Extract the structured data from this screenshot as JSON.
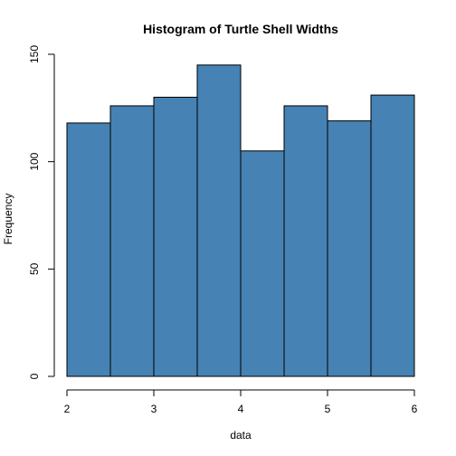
{
  "chart_data": {
    "type": "bar",
    "title": "Histogram of Turtle Shell Widths",
    "xlabel": "data",
    "ylabel": "Frequency",
    "bin_edges": [
      2,
      2.5,
      3,
      3.5,
      4,
      4.5,
      5,
      5.5,
      6
    ],
    "values": [
      118,
      126,
      130,
      145,
      105,
      126,
      119,
      131
    ],
    "xlim": [
      2,
      6
    ],
    "ylim": [
      0,
      150
    ],
    "x_ticks": [
      2,
      3,
      4,
      5,
      6
    ],
    "y_ticks": [
      0,
      50,
      100,
      150
    ],
    "bar_color": "#4682B4",
    "grid": false
  }
}
